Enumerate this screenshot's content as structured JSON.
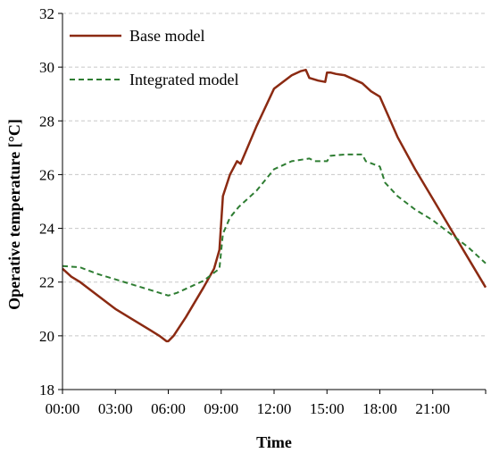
{
  "chart_data": {
    "type": "line",
    "title": "",
    "xlabel": "Time",
    "ylabel": "Operative temperature [°C]",
    "xlim": [
      0,
      24
    ],
    "ylim": [
      18,
      32
    ],
    "x_ticks": [
      0,
      3,
      6,
      9,
      12,
      15,
      18,
      21,
      24
    ],
    "x_tick_labels": [
      "00:00",
      "03:00",
      "06:00",
      "09:00",
      "12:00",
      "15:00",
      "18:00",
      "21:00",
      ""
    ],
    "y_ticks": [
      18,
      20,
      22,
      24,
      26,
      28,
      30,
      32
    ],
    "y_tick_labels": [
      "18",
      "20",
      "22",
      "24",
      "26",
      "28",
      "30",
      "32"
    ],
    "grid": "horizontal dashed",
    "legend_position": "top-left",
    "series": [
      {
        "name": "Base model",
        "color": "#8b2a12",
        "style": "solid",
        "x": [
          0,
          0.5,
          1,
          2,
          3,
          4,
          5,
          5.5,
          5.9,
          6,
          6.3,
          7,
          8,
          8.6,
          8.9,
          9.1,
          9.5,
          9.9,
          10.1,
          11,
          12,
          13,
          13.5,
          13.8,
          14,
          14.5,
          14.9,
          15,
          15.2,
          15.5,
          16,
          17,
          17.5,
          18,
          19,
          20,
          21,
          22,
          23,
          24
        ],
        "values": [
          22.5,
          22.2,
          22.0,
          21.5,
          21.0,
          20.6,
          20.2,
          20.0,
          19.8,
          19.8,
          20.0,
          20.7,
          21.8,
          22.5,
          23.2,
          25.2,
          26.0,
          26.5,
          26.4,
          27.8,
          29.2,
          29.7,
          29.85,
          29.9,
          29.6,
          29.5,
          29.45,
          29.8,
          29.8,
          29.75,
          29.7,
          29.4,
          29.1,
          28.9,
          27.4,
          26.2,
          25.1,
          24.0,
          22.9,
          21.8
        ]
      },
      {
        "name": "Integrated model",
        "color": "#2e7d32",
        "style": "dashed",
        "x": [
          0,
          1,
          2,
          3,
          4,
          5,
          6,
          6.5,
          7,
          8,
          8.9,
          9.1,
          9.5,
          10,
          11,
          12,
          13,
          14,
          14.3,
          15,
          15.2,
          16,
          17,
          17.2,
          18,
          18.3,
          19,
          20,
          21,
          22,
          23,
          24
        ],
        "values": [
          22.6,
          22.55,
          22.3,
          22.1,
          21.9,
          21.7,
          21.5,
          21.6,
          21.75,
          22.05,
          22.5,
          23.8,
          24.4,
          24.8,
          25.4,
          26.2,
          26.5,
          26.6,
          26.5,
          26.5,
          26.7,
          26.75,
          26.75,
          26.5,
          26.3,
          25.7,
          25.2,
          24.7,
          24.3,
          23.8,
          23.3,
          22.7
        ]
      }
    ]
  }
}
